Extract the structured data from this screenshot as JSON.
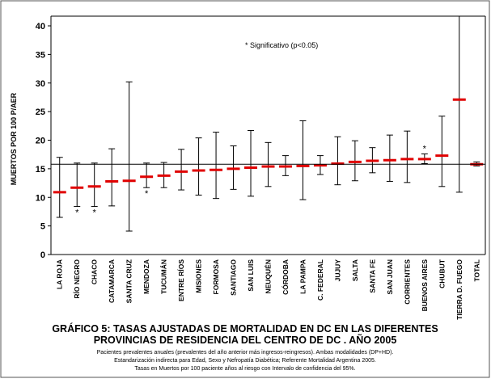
{
  "chart_data": {
    "type": "errorbar",
    "title": [
      "GRÁFICO 5:  TASAS AJUSTADAS DE MORTALIDAD EN DC  EN LAS DIFERENTES",
      "PROVINCIAS DE RESIDENCIA DEL CENTRO DE DC . AÑO 2005"
    ],
    "notes": [
      "Pacientes prevalentes anuales (prevalentes del año anterior más ingresos-reingresos). Ambas modalidades (DP+HD).",
      "Estandarización indirecta para Edad, Sexo y Nefropatía Diabética; Referente Mortalidad Argentina 2005.",
      "Tasas en Muertos por 100 paciente años al riesgo con Intervalo de confidencia del 95%."
    ],
    "ylabel": "MUERTOS POR 100 P/AER",
    "annotation": "* Significativo (p<0.05)",
    "categories": [
      "LA ROJA",
      "RÍO NEGRO",
      "CHACO",
      "CATAMARCA",
      "SANTA CRUZ",
      "MENDOZA",
      "TUCUMÁN",
      "ENTRE RÍOS",
      "MISIONES",
      "FORMOSA",
      "SANTIAGO",
      "SAN LUIS",
      "NEUQUÉN",
      "CÓRDOBA",
      "LA PAMPA",
      "C. FEDERAL",
      "JUJUY",
      "SALTA",
      "SANTA FE",
      "SAN JUAN",
      "CORRIENTES",
      "BUENOS AIRES",
      "CHUBUT",
      "TIERRA D. FUEGO",
      "TOTAL"
    ],
    "values": [
      10.9,
      11.7,
      11.9,
      12.8,
      12.9,
      13.6,
      13.8,
      14.5,
      14.7,
      14.8,
      15.0,
      15.2,
      15.4,
      15.4,
      15.5,
      15.6,
      15.9,
      16.2,
      16.4,
      16.5,
      16.7,
      16.7,
      17.3,
      27.1,
      15.8
    ],
    "lower": [
      6.5,
      8.4,
      8.4,
      8.5,
      4.1,
      11.7,
      11.7,
      11.3,
      10.4,
      9.8,
      11.4,
      10.2,
      11.9,
      13.8,
      9.6,
      14.0,
      12.2,
      12.9,
      14.3,
      12.8,
      12.6,
      15.9,
      11.9,
      10.9,
      15.5
    ],
    "upper": [
      17.0,
      16.0,
      16.0,
      18.5,
      30.2,
      16.0,
      16.1,
      18.4,
      20.4,
      21.4,
      19.0,
      21.7,
      19.6,
      17.3,
      23.4,
      17.3,
      20.6,
      19.9,
      18.7,
      20.9,
      21.6,
      17.6,
      24.2,
      42,
      16.2
    ],
    "significance": [
      null,
      "*",
      "*",
      null,
      null,
      "*",
      null,
      null,
      null,
      null,
      null,
      null,
      null,
      null,
      null,
      null,
      null,
      null,
      null,
      null,
      null,
      "*",
      null,
      null,
      null
    ],
    "reference_line": 15.8,
    "color": "#e00000",
    "bar_color": "#000000",
    "ylim": [
      0,
      40
    ],
    "yticks": [
      0,
      5,
      10,
      15,
      20,
      25,
      30,
      35,
      40
    ]
  }
}
